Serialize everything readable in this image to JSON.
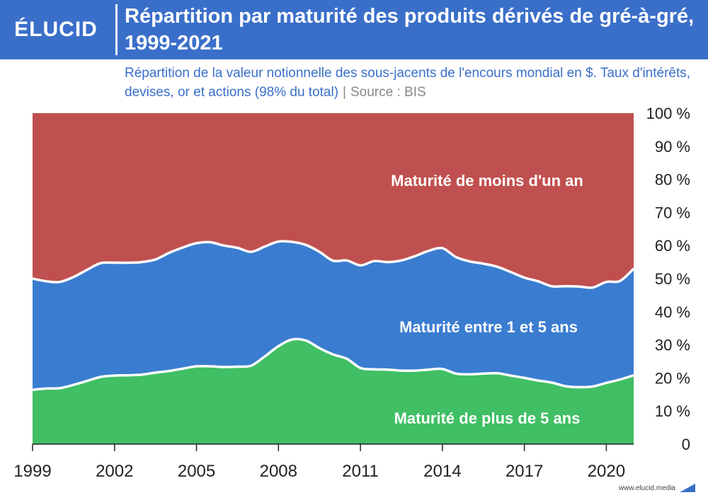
{
  "brand": {
    "logo_text": "ÉLUCID",
    "footer_url": "www.elucid.media"
  },
  "colors": {
    "short": "#c0504f",
    "medium": "#3a7dd0",
    "long": "#40bf64",
    "header": "#3a6fc9"
  },
  "chart_data": {
    "type": "area",
    "stacked": true,
    "title": "Répartition par maturité des produits dérivés de gré-à-gré, 1999-2021",
    "subtitle": "Répartition de la valeur notionnelle des sous-jacents de l'encours mondial en $. Taux d'intérêts, devises, or et actions (98% du total)",
    "source": "Source : BIS",
    "x": [
      1999,
      1999.5,
      2000,
      2000.5,
      2001,
      2001.5,
      2002,
      2002.5,
      2003,
      2003.5,
      2004,
      2004.5,
      2005,
      2005.5,
      2006,
      2006.5,
      2007,
      2007.5,
      2008,
      2008.5,
      2009,
      2009.5,
      2010,
      2010.5,
      2011,
      2011.5,
      2012,
      2012.5,
      2013,
      2013.5,
      2014,
      2014.5,
      2015,
      2015.5,
      2016,
      2016.5,
      2017,
      2017.5,
      2018,
      2018.5,
      2019,
      2019.5,
      2020,
      2020.5,
      2021
    ],
    "x_ticks": [
      "1999",
      "2002",
      "2005",
      "2008",
      "2011",
      "2014",
      "2017",
      "2020"
    ],
    "y_ticks": [
      "0",
      "10 %",
      "20 %",
      "30 %",
      "40 %",
      "50 %",
      "60 %",
      "70 %",
      "80 %",
      "90 %",
      "100 %"
    ],
    "ylim": [
      0,
      100
    ],
    "series": [
      {
        "name": "Maturité de plus de 5 ans",
        "values": [
          16.4,
          16.8,
          16.9,
          17.9,
          19.1,
          20.3,
          20.7,
          20.8,
          21.0,
          21.6,
          22.1,
          22.8,
          23.5,
          23.5,
          23.3,
          23.4,
          23.7,
          26.5,
          29.6,
          31.6,
          31.3,
          29.0,
          27.1,
          25.8,
          23.0,
          22.6,
          22.5,
          22.2,
          22.2,
          22.5,
          22.7,
          21.3,
          21.1,
          21.3,
          21.4,
          20.7,
          20.0,
          19.2,
          18.6,
          17.5,
          17.2,
          17.4,
          18.5,
          19.5,
          20.8
        ]
      },
      {
        "name": "Maturité entre 1 et 5 ans",
        "values": [
          33.6,
          32.4,
          32.1,
          32.6,
          33.6,
          34.4,
          34.1,
          34.0,
          34.0,
          34.2,
          35.7,
          36.6,
          37.2,
          37.5,
          36.7,
          35.9,
          34.4,
          33.2,
          31.6,
          29.5,
          28.9,
          29.1,
          28.3,
          29.7,
          31.0,
          32.7,
          32.5,
          33.3,
          34.6,
          35.9,
          36.5,
          35.2,
          34.1,
          33.2,
          32.2,
          31.3,
          30.3,
          30.0,
          29.1,
          30.2,
          30.4,
          29.9,
          30.5,
          29.8,
          32.2
        ]
      },
      {
        "name": "Maturité de moins d'un an",
        "values": [
          50.0,
          50.8,
          51.0,
          49.5,
          47.3,
          45.3,
          45.2,
          45.2,
          45.0,
          44.2,
          42.2,
          40.6,
          39.3,
          39.0,
          40.0,
          40.7,
          41.9,
          40.3,
          38.8,
          38.9,
          39.8,
          41.9,
          44.6,
          44.5,
          46.0,
          44.7,
          45.0,
          44.5,
          43.2,
          41.6,
          40.8,
          43.5,
          44.8,
          45.5,
          46.4,
          48.0,
          49.7,
          50.8,
          52.3,
          52.3,
          52.4,
          52.7,
          51.0,
          50.7,
          47.0
        ]
      }
    ],
    "series_labels": [
      "Maturité de moins d'un an",
      "Maturité entre 1 et 5 ans",
      "Maturité de plus de 5 ans"
    ],
    "grid": false
  }
}
